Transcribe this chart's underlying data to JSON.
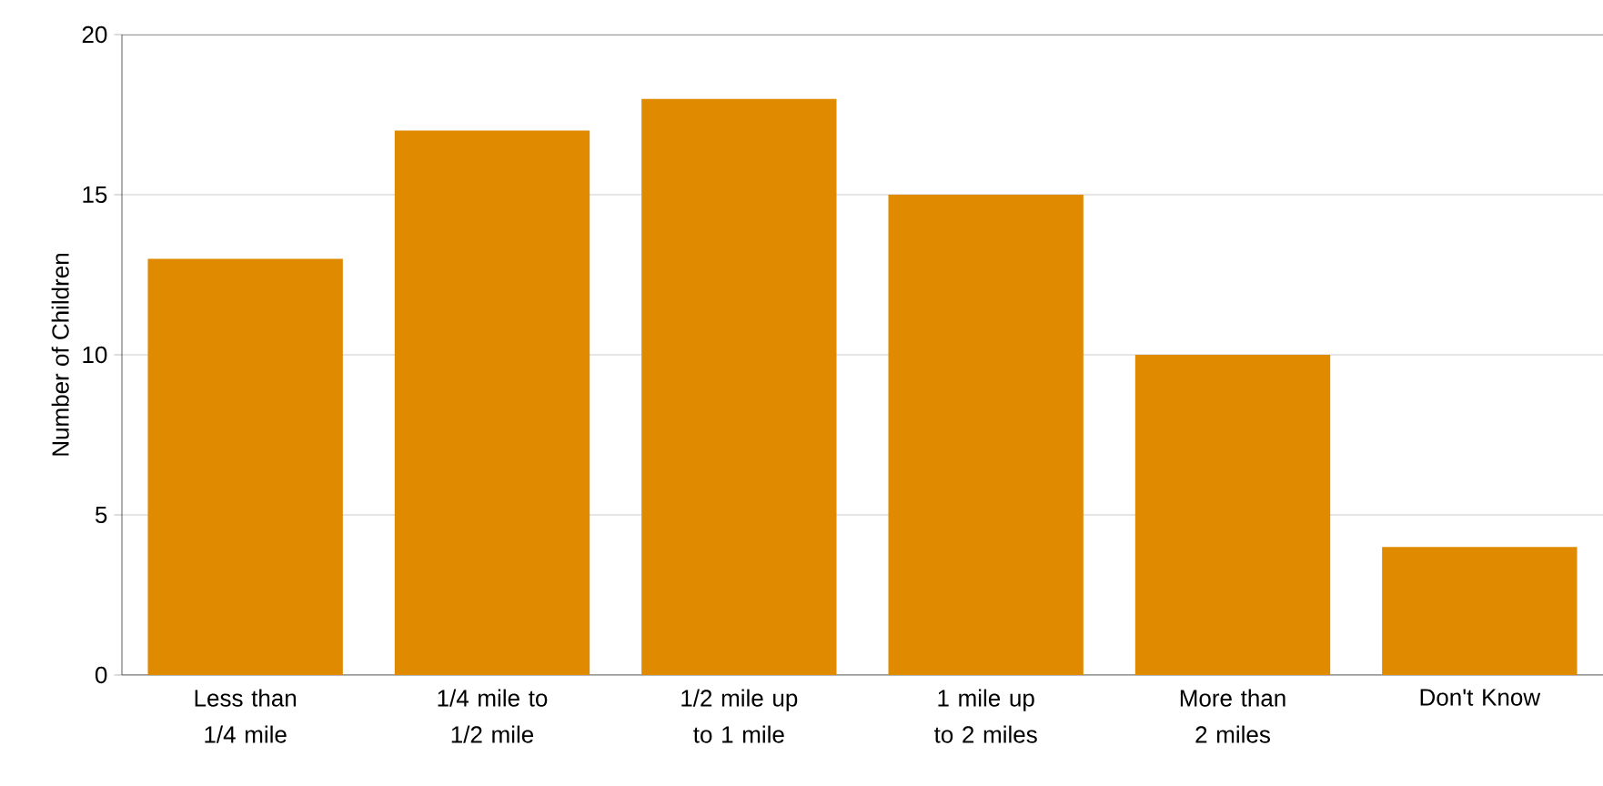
{
  "chart_data": {
    "type": "bar",
    "ylabel": "Number of Children",
    "categories": [
      "Less than 1/4 mile",
      "1/4 mile to 1/2 mile",
      "1/2 mile up to 1 mile",
      "1 mile up to 2 miles",
      "More than 2 miles",
      "Don't Know"
    ],
    "values": [
      13,
      17,
      18,
      15,
      10,
      4
    ],
    "color": "#e08a00",
    "ylim": [
      0,
      20
    ],
    "yticks": [
      0,
      5,
      10,
      15,
      20
    ],
    "grid": "y"
  }
}
